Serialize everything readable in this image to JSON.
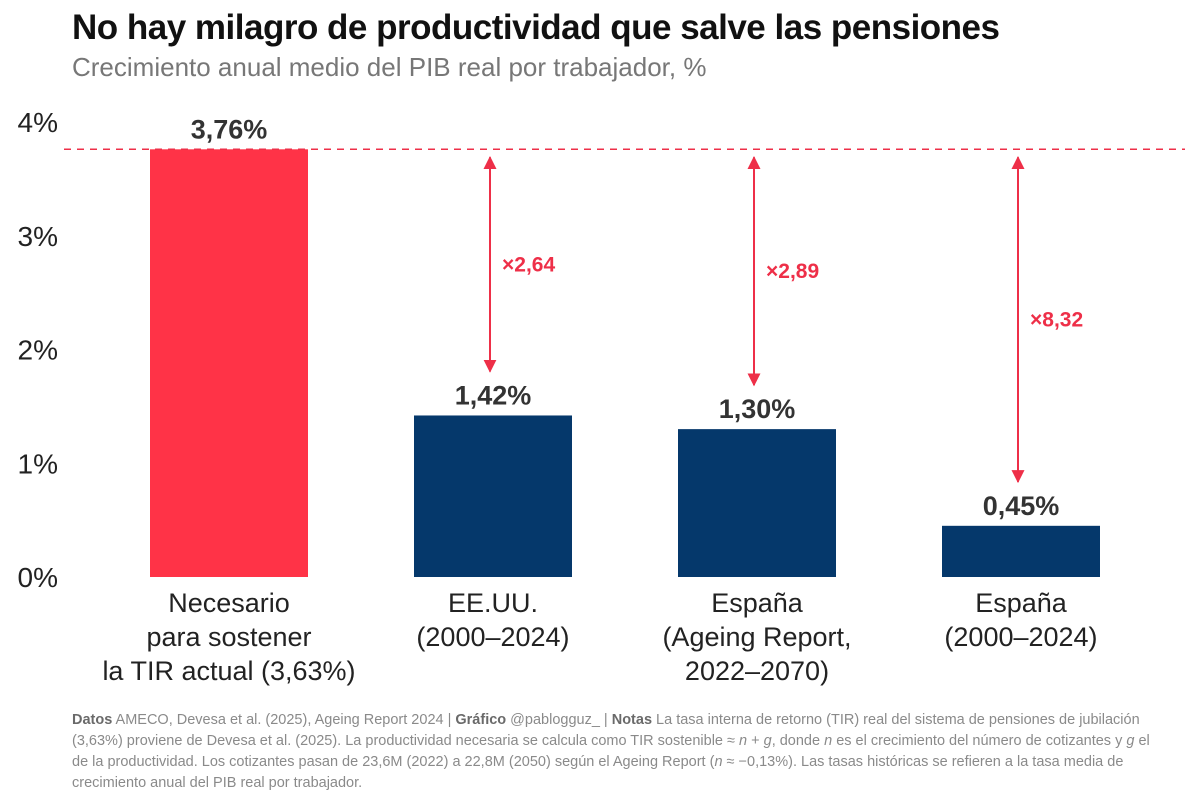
{
  "header": {
    "title": "No hay milagro de productividad que salve las pensiones",
    "subtitle": "Crecimiento anual medio del PIB real por trabajador, %"
  },
  "chart_data": {
    "type": "bar",
    "title": "No hay milagro de productividad que salve las pensiones",
    "subtitle": "Crecimiento anual medio del PIB real por trabajador, %",
    "xlabel": "",
    "ylabel": "",
    "ylim": [
      0,
      4
    ],
    "yticks": [
      "0%",
      "1%",
      "2%",
      "3%",
      "4%"
    ],
    "grid": false,
    "categories": [
      [
        "Necesario",
        "para sostener",
        "la TIR actual (3,63%)"
      ],
      [
        "EE.UU.",
        "(2000–2024)"
      ],
      [
        "España",
        "(Ageing Report,",
        "2022–2070)"
      ],
      [
        "España",
        "(2000–2024)"
      ]
    ],
    "values": [
      3.76,
      1.42,
      1.3,
      0.45
    ],
    "value_labels": [
      "3,76%",
      "1,42%",
      "1,30%",
      "0,45%"
    ],
    "reference_line": {
      "value": 3.76,
      "style": "dashed"
    },
    "multipliers": [
      "",
      "×2,64",
      "×2,89",
      "×8,32"
    ],
    "colors": {
      "highlight": "#ff3347",
      "bars": "#05386b",
      "annotation": "#ee2f48",
      "value_label": "#333333",
      "axis_text": "#222222"
    }
  },
  "notes": {
    "data_label": "Datos",
    "data_text": " AMECO, Devesa et al. (2025), Ageing Report 2024 | ",
    "chart_label": "Gráfico",
    "chart_text": " @pablogguz_ | ",
    "notes_label": "Notas",
    "notes_part1": " La tasa interna de retorno (TIR) real del sistema de pensiones de jubilación (3,63%) proviene de Devesa et al. (2025). La productividad necesaria se calcula como TIR sostenible ≈ ",
    "n1": "n",
    "plus": " + ",
    "g1": "g",
    "notes_part2": ", donde ",
    "n2": "n",
    "notes_part3": " es el crecimiento del número de cotizantes y ",
    "g2": "g",
    "notes_part4": " el de la productividad. Los cotizantes pasan de 23,6M (2022) a 22,8M (2050) según el Ageing Report (",
    "n3": "n",
    "notes_part5": " ≈ −0,13%). Las tasas históricas se refieren a la tasa media de crecimiento anual del PIB real por trabajador."
  }
}
